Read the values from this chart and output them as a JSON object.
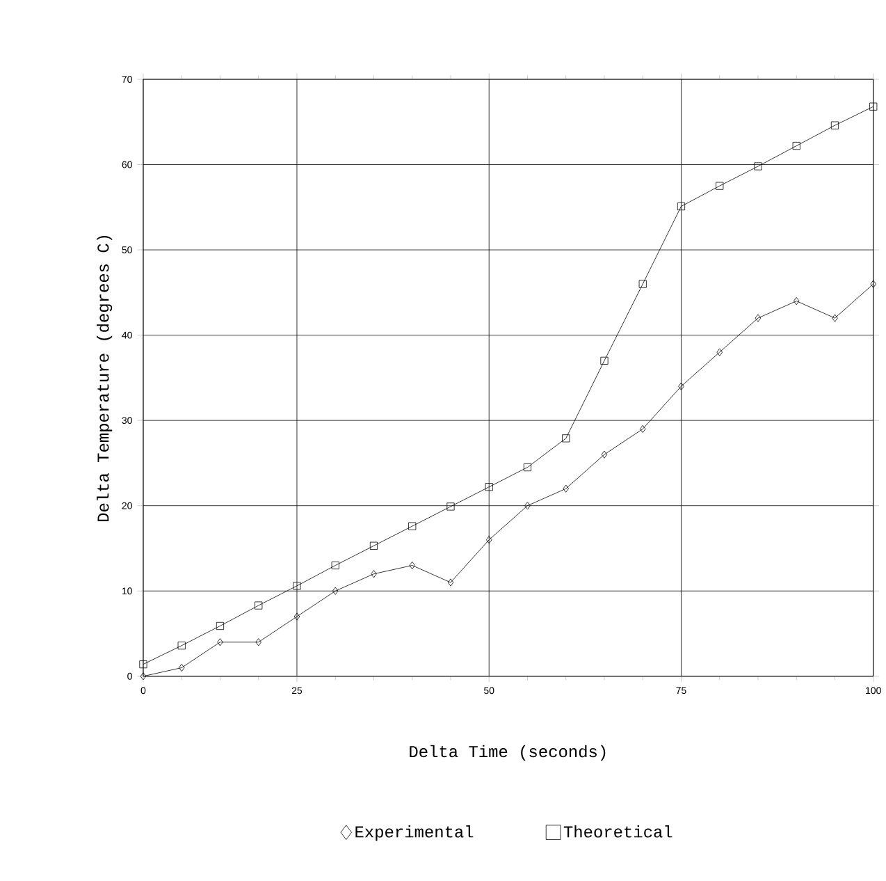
{
  "chart_data": {
    "type": "line",
    "xlabel": "Delta Time (seconds)",
    "ylabel": "Delta Temperature (degrees C)",
    "categories": [
      "0",
      null,
      null,
      null,
      "25",
      null,
      null,
      null,
      null,
      "50",
      null,
      null,
      null,
      null,
      "75",
      null,
      null,
      null,
      null,
      "100"
    ],
    "series": [
      {
        "name": "Experimental",
        "color": "#000000",
        "marker": "diamond",
        "values": [
          0,
          1,
          4,
          4,
          7,
          10,
          12,
          13,
          11,
          16,
          20,
          22,
          26,
          29,
          34,
          38,
          42,
          44,
          42,
          46
        ]
      },
      {
        "name": "Theoretical",
        "color": "#000000",
        "marker": "square",
        "values": [
          1.4,
          3.6,
          5.9,
          8.3,
          10.6,
          13.0,
          15.3,
          17.6,
          19.9,
          22.2,
          24.5,
          27.9,
          37,
          46,
          55.1,
          57.5,
          59.8,
          62.2,
          64.6,
          66.8
        ]
      }
    ],
    "ylim": [
      0,
      70
    ],
    "yticks": [
      0,
      10,
      20,
      30,
      40,
      50,
      60,
      70
    ],
    "grid": true,
    "legend": "bottom",
    "line_style": "solid"
  }
}
